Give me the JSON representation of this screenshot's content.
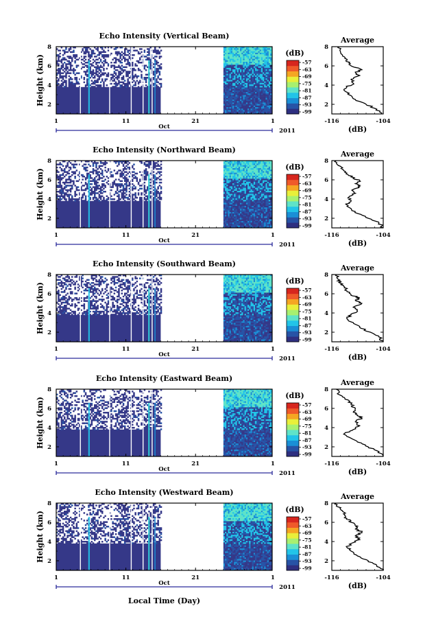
{
  "chart_data": {
    "type": "heatmap",
    "shared": {
      "xlabel": "Local Time (Day)",
      "x_ticks": [
        "1",
        "11",
        "21",
        "1"
      ],
      "month_label": "Oct",
      "year_label": "2011",
      "ylabel": "Height (km)",
      "y_ticks": [
        "2",
        "4",
        "6",
        "8"
      ],
      "ylim": [
        1,
        8
      ],
      "colorbar_unit": "(dB)",
      "colorbar_ticks": [
        "-57",
        "-63",
        "-69",
        "-75",
        "-81",
        "-87",
        "-93",
        "-99"
      ],
      "colors": [
        "#2e2f80",
        "#2753a6",
        "#1a8fd6",
        "#22c4e8",
        "#5fe3c8",
        "#a8f070",
        "#e9ef3a",
        "#f5a623",
        "#ef5a2a",
        "#d7261e"
      ],
      "average_title": "Average",
      "average_xlabel": "(dB)",
      "average_x_ticks": [
        "-116",
        "-104"
      ],
      "average_xlim": [
        -116,
        -104
      ],
      "data_gap_days": [
        16,
        25
      ]
    },
    "panels": [
      {
        "title": "Echo Intensity (Vertical Beam)",
        "average_profile": [
          [
            -104.5,
            1.0
          ],
          [
            -105.5,
            1.5
          ],
          [
            -108.0,
            2.0
          ],
          [
            -110.5,
            2.5
          ],
          [
            -112.0,
            3.0
          ],
          [
            -113.0,
            3.4
          ],
          [
            -112.5,
            3.8
          ],
          [
            -111.0,
            4.2
          ],
          [
            -111.5,
            4.6
          ],
          [
            -109.5,
            5.0
          ],
          [
            -110.5,
            5.3
          ],
          [
            -109.0,
            5.6
          ],
          [
            -111.0,
            5.9
          ],
          [
            -112.0,
            6.3
          ],
          [
            -112.5,
            6.7
          ],
          [
            -113.5,
            7.1
          ],
          [
            -114.0,
            7.5
          ],
          [
            -114.5,
            8.0
          ]
        ]
      },
      {
        "title": "Echo Intensity (Northward Beam)",
        "average_profile": [
          [
            -104.0,
            1.0
          ],
          [
            -105.0,
            1.5
          ],
          [
            -107.5,
            2.0
          ],
          [
            -110.0,
            2.5
          ],
          [
            -111.5,
            3.0
          ],
          [
            -112.5,
            3.4
          ],
          [
            -111.5,
            3.8
          ],
          [
            -112.0,
            4.2
          ],
          [
            -110.5,
            4.6
          ],
          [
            -111.0,
            5.0
          ],
          [
            -109.5,
            5.3
          ],
          [
            -110.5,
            5.6
          ],
          [
            -109.5,
            5.9
          ],
          [
            -111.5,
            6.3
          ],
          [
            -112.5,
            6.7
          ],
          [
            -113.5,
            7.1
          ],
          [
            -114.5,
            7.5
          ],
          [
            -115.0,
            8.0
          ]
        ]
      },
      {
        "title": "Echo Intensity (Southward Beam)",
        "average_profile": [
          [
            -104.0,
            1.0
          ],
          [
            -105.0,
            1.5
          ],
          [
            -107.0,
            2.0
          ],
          [
            -109.5,
            2.5
          ],
          [
            -111.0,
            3.0
          ],
          [
            -112.5,
            3.4
          ],
          [
            -111.5,
            3.8
          ],
          [
            -110.0,
            4.2
          ],
          [
            -111.0,
            4.6
          ],
          [
            -109.0,
            5.0
          ],
          [
            -110.5,
            5.3
          ],
          [
            -109.5,
            5.6
          ],
          [
            -111.5,
            5.9
          ],
          [
            -112.5,
            6.3
          ],
          [
            -113.0,
            6.7
          ],
          [
            -114.0,
            7.1
          ],
          [
            -114.5,
            7.5
          ],
          [
            -115.0,
            8.0
          ]
        ]
      },
      {
        "title": "Echo Intensity (Eastward Beam)",
        "average_profile": [
          [
            -104.0,
            1.0
          ],
          [
            -105.0,
            1.5
          ],
          [
            -107.5,
            2.0
          ],
          [
            -110.0,
            2.5
          ],
          [
            -112.0,
            3.0
          ],
          [
            -113.0,
            3.4
          ],
          [
            -111.0,
            3.8
          ],
          [
            -109.5,
            4.2
          ],
          [
            -110.5,
            4.6
          ],
          [
            -109.0,
            5.0
          ],
          [
            -110.0,
            5.3
          ],
          [
            -111.0,
            5.6
          ],
          [
            -110.5,
            6.0
          ],
          [
            -111.5,
            6.4
          ],
          [
            -112.0,
            6.8
          ],
          [
            -113.5,
            7.2
          ],
          [
            -114.5,
            7.6
          ],
          [
            -115.0,
            8.0
          ]
        ]
      },
      {
        "title": "Echo Intensity (Westward Beam)",
        "average_profile": [
          [
            -104.0,
            1.0
          ],
          [
            -105.5,
            1.5
          ],
          [
            -107.5,
            2.0
          ],
          [
            -110.0,
            2.5
          ],
          [
            -111.5,
            3.0
          ],
          [
            -112.5,
            3.4
          ],
          [
            -111.5,
            3.8
          ],
          [
            -109.5,
            4.2
          ],
          [
            -110.5,
            4.6
          ],
          [
            -109.0,
            5.0
          ],
          [
            -110.5,
            5.3
          ],
          [
            -110.0,
            5.6
          ],
          [
            -111.5,
            6.0
          ],
          [
            -112.5,
            6.4
          ],
          [
            -113.0,
            6.8
          ],
          [
            -113.5,
            7.2
          ],
          [
            -114.5,
            7.6
          ],
          [
            -115.0,
            8.0
          ]
        ]
      }
    ]
  }
}
